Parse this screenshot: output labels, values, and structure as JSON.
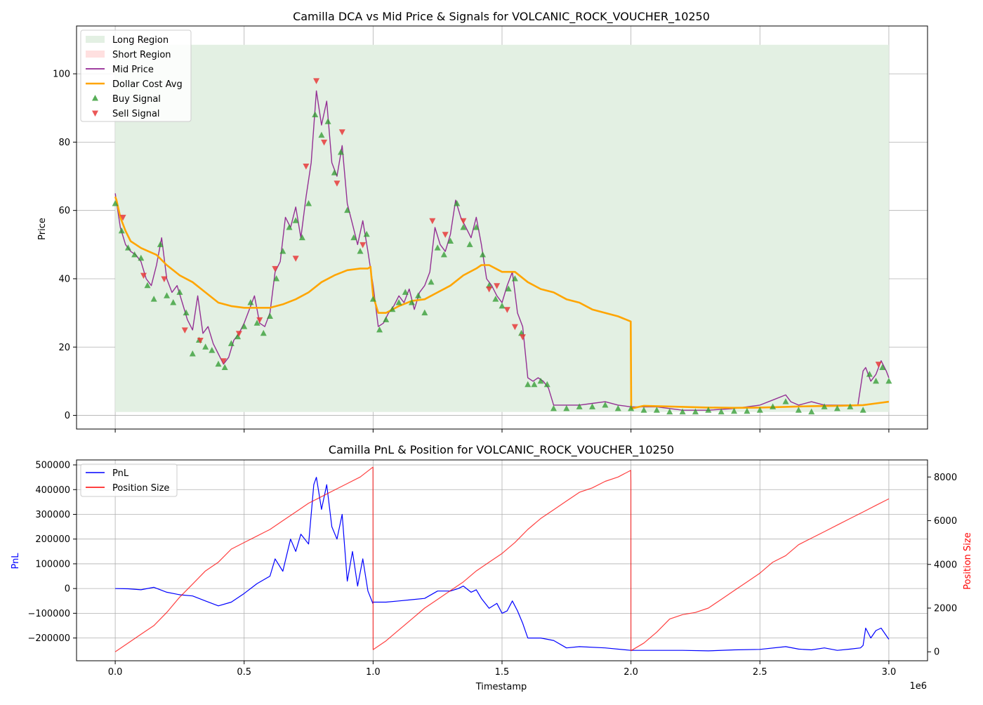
{
  "chart_data": [
    {
      "type": "line",
      "title": "Camilla DCA vs Mid Price & Signals for VOLCANIC_ROCK_VOUCHER_10250",
      "xlabel": "",
      "ylabel": "Price",
      "xlim": [
        -150000,
        3150000
      ],
      "ylim": [
        -4,
        114
      ],
      "xticks": [
        0,
        500000,
        1000000,
        1500000,
        2000000,
        2500000,
        3000000
      ],
      "yticks": [
        0,
        20,
        40,
        60,
        80,
        100
      ],
      "ytick_labels": [
        "0",
        "20",
        "40",
        "60",
        "80",
        "100"
      ],
      "grid": true,
      "legend_position": "upper-left",
      "legend": [
        {
          "label": "Long Region",
          "kind": "patch",
          "color": "#e3f0e3"
        },
        {
          "label": "Short Region",
          "kind": "patch",
          "color": "#ffe0e0"
        },
        {
          "label": "Mid Price",
          "kind": "line",
          "color": "#800080"
        },
        {
          "label": "Dollar Cost Avg",
          "kind": "line",
          "color": "#ffa500"
        },
        {
          "label": "Buy Signal",
          "kind": "marker-up",
          "color": "#2e9a2e"
        },
        {
          "label": "Sell Signal",
          "kind": "marker-down",
          "color": "#e83a3a"
        }
      ],
      "long_region": {
        "x": [
          0,
          3000000
        ],
        "y": [
          1,
          108.5
        ]
      },
      "series": [
        {
          "name": "Mid Price",
          "color": "#800080",
          "x": [
            0,
            20000,
            40000,
            60000,
            80000,
            100000,
            120000,
            140000,
            160000,
            180000,
            200000,
            220000,
            240000,
            260000,
            280000,
            300000,
            320000,
            340000,
            360000,
            380000,
            400000,
            420000,
            440000,
            460000,
            480000,
            500000,
            520000,
            540000,
            560000,
            580000,
            600000,
            620000,
            640000,
            660000,
            680000,
            700000,
            720000,
            740000,
            760000,
            780000,
            800000,
            820000,
            840000,
            860000,
            880000,
            900000,
            920000,
            940000,
            960000,
            980000,
            1000000,
            1020000,
            1040000,
            1060000,
            1080000,
            1100000,
            1120000,
            1140000,
            1160000,
            1180000,
            1200000,
            1220000,
            1240000,
            1260000,
            1280000,
            1300000,
            1320000,
            1340000,
            1360000,
            1380000,
            1400000,
            1420000,
            1440000,
            1460000,
            1480000,
            1500000,
            1520000,
            1540000,
            1560000,
            1580000,
            1600000,
            1620000,
            1640000,
            1660000,
            1680000,
            1700000,
            1750000,
            1800000,
            1850000,
            1900000,
            1950000,
            2000000,
            2100000,
            2200000,
            2300000,
            2400000,
            2500000,
            2550000,
            2600000,
            2620000,
            2650000,
            2700000,
            2750000,
            2800000,
            2850000,
            2880000,
            2900000,
            2910000,
            2930000,
            2950000,
            2970000,
            2990000,
            3000000
          ],
          "values": [
            65,
            55,
            50,
            48,
            47,
            45,
            40,
            38,
            44,
            52,
            40,
            36,
            38,
            33,
            28,
            25,
            35,
            24,
            26,
            21,
            18,
            15,
            17,
            22,
            24,
            27,
            31,
            35,
            27,
            26,
            30,
            42,
            45,
            58,
            55,
            61,
            52,
            64,
            74,
            95,
            85,
            92,
            74,
            70,
            79,
            62,
            56,
            50,
            57,
            48,
            38,
            26,
            27,
            30,
            32,
            35,
            33,
            37,
            31,
            36,
            38,
            42,
            55,
            50,
            48,
            53,
            63,
            58,
            55,
            52,
            58,
            50,
            40,
            38,
            35,
            33,
            38,
            42,
            30,
            26,
            11,
            10,
            11,
            10,
            8,
            3,
            3,
            3,
            3.5,
            4,
            3,
            2.5,
            2.5,
            1.5,
            1.5,
            2,
            3,
            4.5,
            6,
            4,
            3,
            4,
            3,
            3,
            3,
            3,
            13,
            14,
            10,
            12,
            16,
            13,
            11
          ]
        },
        {
          "name": "Dollar Cost Avg",
          "color": "#ffa500",
          "x": [
            0,
            5000,
            20000,
            40000,
            60000,
            80000,
            100000,
            130000,
            160000,
            200000,
            250000,
            300000,
            350000,
            400000,
            450000,
            500000,
            550000,
            600000,
            650000,
            700000,
            750000,
            800000,
            850000,
            900000,
            950000,
            980000,
            990000,
            1000000,
            1020000,
            1050000,
            1100000,
            1150000,
            1200000,
            1250000,
            1300000,
            1350000,
            1400000,
            1420000,
            1450000,
            1500000,
            1550000,
            1600000,
            1650000,
            1700000,
            1750000,
            1800000,
            1850000,
            1900000,
            1950000,
            1999000,
            2001000,
            2050000,
            2100000,
            2200000,
            2300000,
            2400000,
            2500000,
            2600000,
            2700000,
            2800000,
            2900000,
            2950000,
            3000000
          ],
          "values": [
            64,
            63,
            58,
            54,
            51,
            50,
            49,
            48,
            47,
            44,
            41,
            39,
            36,
            33,
            32,
            31.5,
            31.5,
            31.5,
            32.5,
            34,
            36,
            39,
            41,
            42.5,
            43,
            43,
            43.5,
            35,
            30,
            30,
            32,
            33.5,
            34,
            36,
            38,
            41,
            43,
            44,
            44,
            42,
            42,
            39,
            37,
            36,
            34,
            33,
            31,
            30,
            29,
            27.5,
            2,
            2.8,
            2.7,
            2.5,
            2.3,
            2.2,
            2.3,
            2.5,
            2.7,
            2.8,
            3,
            3.5,
            4
          ]
        }
      ],
      "signals": {
        "buy_x": [
          0,
          25000,
          50000,
          75000,
          100000,
          125000,
          150000,
          175000,
          200000,
          225000,
          250000,
          275000,
          300000,
          325000,
          350000,
          375000,
          400000,
          425000,
          450000,
          475000,
          500000,
          525000,
          550000,
          575000,
          600000,
          625000,
          650000,
          675000,
          700000,
          725000,
          750000,
          775000,
          800000,
          825000,
          850000,
          875000,
          900000,
          925000,
          950000,
          975000,
          1000000,
          1025000,
          1050000,
          1075000,
          1100000,
          1125000,
          1150000,
          1175000,
          1200000,
          1225000,
          1250000,
          1275000,
          1300000,
          1325000,
          1350000,
          1375000,
          1400000,
          1425000,
          1450000,
          1475000,
          1500000,
          1525000,
          1550000,
          1575000,
          1600000,
          1625000,
          1650000,
          1675000,
          1700000,
          1750000,
          1800000,
          1850000,
          1900000,
          1950000,
          2000000,
          2050000,
          2100000,
          2150000,
          2200000,
          2250000,
          2300000,
          2350000,
          2400000,
          2450000,
          2500000,
          2550000,
          2600000,
          2650000,
          2700000,
          2750000,
          2800000,
          2850000,
          2900000,
          2925000,
          2950000,
          2975000,
          3000000
        ],
        "buy_y": [
          62,
          54,
          49,
          47,
          46,
          38,
          34,
          50,
          35,
          33,
          36,
          30,
          18,
          22,
          20,
          19,
          15,
          14,
          21,
          23,
          26,
          33,
          27,
          24,
          29,
          40,
          48,
          55,
          57,
          52,
          62,
          88,
          82,
          86,
          71,
          77,
          60,
          52,
          48,
          53,
          34,
          25,
          28,
          31,
          33,
          36,
          33,
          35,
          30,
          39,
          49,
          47,
          51,
          62,
          55,
          50,
          55,
          47,
          38,
          34,
          32,
          37,
          40,
          24,
          9,
          9,
          10,
          9,
          2,
          2,
          2.5,
          2.5,
          3,
          2,
          2,
          1.5,
          1.5,
          1,
          1,
          1,
          1.5,
          1,
          1.2,
          1.2,
          1.5,
          2.5,
          4,
          1.5,
          1,
          2.5,
          2,
          2.5,
          1.5,
          12,
          10,
          14,
          10
        ],
        "sell_x": [
          30000,
          110000,
          190000,
          270000,
          330000,
          420000,
          480000,
          560000,
          620000,
          700000,
          740000,
          780000,
          810000,
          860000,
          880000,
          960000,
          1230000,
          1280000,
          1350000,
          1450000,
          1480000,
          1520000,
          1550000,
          1580000,
          2960000
        ],
        "sell_y": [
          58,
          41,
          40,
          25,
          22,
          16,
          24,
          28,
          43,
          46,
          73,
          98,
          80,
          68,
          83,
          50,
          57,
          53,
          57,
          37,
          38,
          31,
          26,
          23,
          15
        ]
      }
    },
    {
      "type": "line",
      "title": "Camilla PnL & Position for VOLCANIC_ROCK_VOUCHER_10250",
      "xlabel": "Timestamp",
      "ylabel": "PnL",
      "y2label": "Position Size",
      "x_offset_label": "1e6",
      "xlim": [
        -150000,
        3150000
      ],
      "xticks": [
        0,
        500000,
        1000000,
        1500000,
        2000000,
        2500000,
        3000000
      ],
      "xtick_labels": [
        "0.0",
        "0.5",
        "1.0",
        "1.5",
        "2.0",
        "2.5",
        "3.0"
      ],
      "ylim": [
        -292000,
        520000
      ],
      "yticks": [
        -200000,
        -100000,
        0,
        100000,
        200000,
        300000,
        400000,
        500000
      ],
      "ytick_labels": [
        "−200000",
        "−100000",
        "0",
        "100000",
        "200000",
        "300000",
        "400000",
        "500000"
      ],
      "y2lim": [
        -410,
        8780
      ],
      "y2ticks": [
        0,
        2000,
        4000,
        6000,
        8000
      ],
      "y2tick_labels": [
        "0",
        "2000",
        "4000",
        "6000",
        "8000"
      ],
      "grid": true,
      "legend_position": "upper-left",
      "legend": [
        {
          "label": "PnL",
          "kind": "line",
          "color": "#0000ff"
        },
        {
          "label": "Position Size",
          "kind": "line",
          "color": "#ff0000"
        }
      ],
      "series": [
        {
          "name": "PnL",
          "color": "#0000ff",
          "axis": "left",
          "x": [
            0,
            50000,
            100000,
            150000,
            200000,
            250000,
            300000,
            350000,
            400000,
            450000,
            500000,
            550000,
            600000,
            620000,
            650000,
            680000,
            700000,
            720000,
            750000,
            770000,
            780000,
            800000,
            820000,
            840000,
            860000,
            880000,
            900000,
            920000,
            940000,
            960000,
            980000,
            999000,
            1001000,
            1050000,
            1100000,
            1150000,
            1200000,
            1250000,
            1300000,
            1330000,
            1350000,
            1380000,
            1400000,
            1420000,
            1450000,
            1480000,
            1500000,
            1520000,
            1540000,
            1560000,
            1580000,
            1600000,
            1650000,
            1700000,
            1750000,
            1800000,
            1900000,
            2000000,
            2100000,
            2200000,
            2300000,
            2400000,
            2500000,
            2600000,
            2650000,
            2700000,
            2750000,
            2800000,
            2850000,
            2890000,
            2900000,
            2910000,
            2930000,
            2950000,
            2970000,
            2990000,
            3000000
          ],
          "values": [
            0,
            -1000,
            -5000,
            5000,
            -15000,
            -25000,
            -30000,
            -50000,
            -70000,
            -55000,
            -20000,
            20000,
            50000,
            120000,
            70000,
            200000,
            150000,
            220000,
            180000,
            420000,
            450000,
            320000,
            420000,
            250000,
            200000,
            300000,
            30000,
            150000,
            10000,
            120000,
            -10000,
            -60000,
            -55000,
            -55000,
            -50000,
            -45000,
            -40000,
            -10000,
            -10000,
            0,
            10000,
            -15000,
            -5000,
            -40000,
            -80000,
            -60000,
            -100000,
            -90000,
            -50000,
            -90000,
            -140000,
            -200000,
            -200000,
            -210000,
            -240000,
            -235000,
            -240000,
            -250000,
            -250000,
            -250000,
            -252000,
            -248000,
            -246000,
            -235000,
            -245000,
            -248000,
            -240000,
            -250000,
            -245000,
            -240000,
            -230000,
            -160000,
            -200000,
            -170000,
            -160000,
            -190000,
            -205000
          ]
        },
        {
          "name": "Position Size",
          "color": "#ff0000",
          "axis": "right",
          "x": [
            0,
            50000,
            100000,
            150000,
            200000,
            250000,
            300000,
            350000,
            400000,
            450000,
            500000,
            550000,
            600000,
            650000,
            700000,
            750000,
            800000,
            850000,
            900000,
            950000,
            999000,
            999500,
            1000000,
            1050000,
            1100000,
            1150000,
            1200000,
            1250000,
            1300000,
            1350000,
            1400000,
            1450000,
            1500000,
            1550000,
            1600000,
            1650000,
            1700000,
            1750000,
            1800000,
            1850000,
            1900000,
            1950000,
            1999000,
            1999500,
            2000000,
            2050000,
            2100000,
            2150000,
            2200000,
            2250000,
            2300000,
            2350000,
            2400000,
            2450000,
            2500000,
            2550000,
            2600000,
            2650000,
            2700000,
            2750000,
            2800000,
            2850000,
            2900000,
            2950000,
            3000000
          ],
          "values": [
            0,
            400,
            800,
            1200,
            1800,
            2500,
            3100,
            3700,
            4100,
            4700,
            5000,
            5300,
            5600,
            6000,
            6400,
            6800,
            7100,
            7400,
            7700,
            8000,
            8450,
            8450,
            100,
            500,
            1000,
            1500,
            2000,
            2400,
            2800,
            3200,
            3700,
            4100,
            4500,
            5000,
            5600,
            6100,
            6500,
            6900,
            7300,
            7500,
            7800,
            8000,
            8300,
            7800,
            50,
            400,
            900,
            1500,
            1700,
            1800,
            2000,
            2400,
            2800,
            3200,
            3600,
            4100,
            4400,
            4900,
            5200,
            5500,
            5800,
            6100,
            6400,
            6700,
            7000
          ]
        }
      ]
    }
  ]
}
